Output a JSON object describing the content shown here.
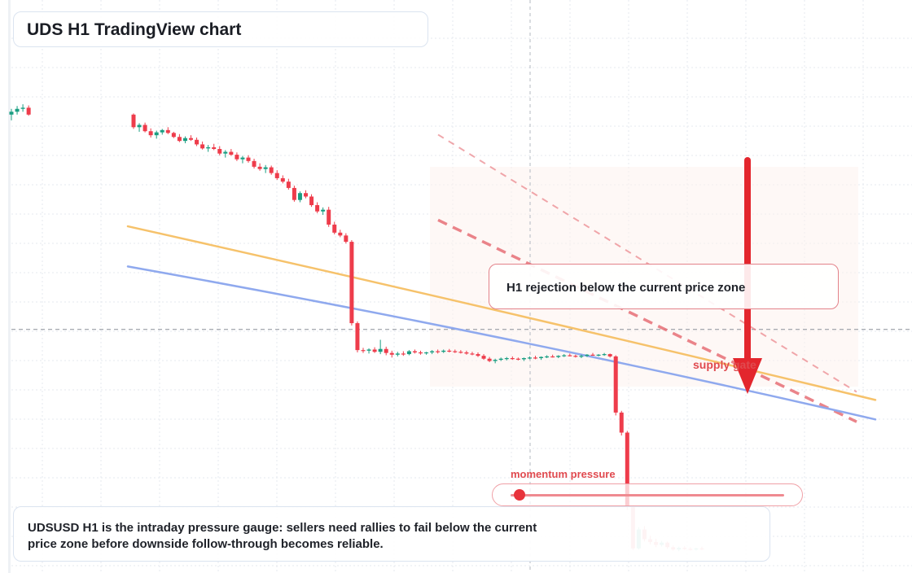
{
  "header": {
    "title": "UDS H1 TradingView chart"
  },
  "annotations": {
    "rejection": "H1 rejection below the current price zone",
    "supply": "supply gate",
    "momentum_label": "momentum pressure",
    "note": "UDSUSD H1 is the intraday pressure gauge: sellers need rallies to fail below the current price zone before downside follow-through becomes reliable."
  },
  "gauge": {
    "level": 0.02
  },
  "colors": {
    "bull": "#1a9e82",
    "bear": "#ee3c4b",
    "ma_fast": "#f6c26b",
    "ma_slow": "#8fa9ee",
    "arrow": "#e3262d",
    "dashed": "#e76f76"
  },
  "chart_data": {
    "type": "candlestick",
    "timeframe": "H1",
    "symbol": "UDSUSD",
    "grid": true,
    "candles": [
      [
        100,
        101,
        99,
        100.5
      ],
      [
        100.5,
        101.5,
        100,
        101
      ],
      [
        101,
        101.8,
        100.5,
        101.2
      ],
      [
        101.2,
        101.6,
        99.8,
        100
      ],
      [
        100,
        100.2,
        97.5,
        97.8
      ],
      [
        97.8,
        98.5,
        97,
        98.2
      ],
      [
        98.2,
        98.6,
        96.9,
        97.1
      ],
      [
        97.1,
        97.6,
        96,
        96.4
      ],
      [
        96.4,
        97.2,
        95.8,
        96.9
      ],
      [
        96.9,
        97.5,
        96.5,
        97.3
      ],
      [
        97.3,
        97.8,
        96.6,
        96.8
      ],
      [
        96.8,
        97,
        95.9,
        96.1
      ],
      [
        96.1,
        96.6,
        95.2,
        95.4
      ],
      [
        95.4,
        96.2,
        95,
        95.9
      ],
      [
        95.9,
        96.4,
        95.4,
        95.6
      ],
      [
        95.6,
        96,
        94.5,
        94.8
      ],
      [
        94.8,
        95.3,
        93.9,
        94.1
      ],
      [
        94.1,
        94.7,
        93.5,
        94.3
      ],
      [
        94.3,
        94.9,
        93.8,
        94
      ],
      [
        94,
        94.5,
        92.9,
        93.2
      ],
      [
        93.2,
        93.8,
        92.5,
        93.5
      ],
      [
        93.5,
        94,
        92.8,
        93
      ],
      [
        93,
        93.4,
        91.9,
        92.2
      ],
      [
        92.2,
        92.8,
        91.5,
        92.5
      ],
      [
        92.5,
        92.9,
        91.6,
        91.9
      ],
      [
        91.9,
        92.3,
        90.6,
        90.9
      ],
      [
        90.9,
        91.5,
        90.2,
        90.5
      ],
      [
        90.5,
        91.2,
        89.8,
        90.8
      ],
      [
        90.8,
        91.1,
        89.5,
        89.8
      ],
      [
        89.8,
        90.3,
        88.6,
        88.9
      ],
      [
        88.9,
        89.4,
        88,
        88.3
      ],
      [
        88.3,
        88.8,
        86.9,
        87.2
      ],
      [
        87.2,
        87.6,
        84.8,
        85.1
      ],
      [
        85.1,
        86.6,
        84.7,
        86.3
      ],
      [
        86.3,
        86.8,
        85.4,
        85.7
      ],
      [
        85.7,
        86.1,
        83.9,
        84.2
      ],
      [
        84.2,
        84.7,
        82.8,
        83.1
      ],
      [
        83.1,
        83.8,
        82.5,
        83.4
      ],
      [
        83.4,
        83.9,
        80.4,
        80.8
      ],
      [
        80.8,
        81.3,
        79.1,
        79.4
      ],
      [
        79.4,
        79.9,
        78.6,
        78.9
      ],
      [
        78.9,
        79.3,
        77.5,
        77.8
      ],
      [
        77.8,
        78.1,
        63.2,
        63.6
      ],
      [
        63.6,
        63.9,
        58.5,
        58.9
      ],
      [
        58.9,
        59.3,
        58.4,
        58.8
      ],
      [
        58.8,
        59.2,
        58.3,
        59
      ],
      [
        59,
        59.4,
        58.4,
        58.6
      ],
      [
        58.6,
        60.7,
        58.2,
        59.1
      ],
      [
        59.1,
        59.5,
        58,
        58.4
      ],
      [
        58.4,
        58.8,
        57.6,
        58.1
      ],
      [
        58.1,
        58.6,
        57.8,
        58.3
      ],
      [
        58.3,
        58.7,
        57.9,
        58.2
      ],
      [
        58.2,
        58.9,
        58,
        58.7
      ],
      [
        58.7,
        59,
        58.3,
        58.5
      ],
      [
        58.5,
        58.8,
        58.1,
        58.4
      ],
      [
        58.4,
        58.6,
        58.1,
        58.5
      ],
      [
        58.5,
        58.9,
        58.2,
        58.7
      ],
      [
        58.7,
        59,
        58.3,
        58.6
      ],
      [
        58.6,
        59,
        58.4,
        58.8
      ],
      [
        58.8,
        59.1,
        58.5,
        58.7
      ],
      [
        58.7,
        59,
        58.4,
        58.6
      ],
      [
        58.6,
        58.9,
        58.3,
        58.5
      ],
      [
        58.5,
        58.8,
        58.1,
        58.3
      ],
      [
        58.3,
        58.6,
        58,
        58.2
      ],
      [
        58.2,
        58.5,
        57.7,
        57.9
      ],
      [
        57.9,
        58.2,
        57.2,
        57.4
      ],
      [
        57.4,
        57.7,
        56.8,
        57
      ],
      [
        57,
        57.4,
        56.6,
        57.2
      ],
      [
        57.2,
        57.6,
        57,
        57.4
      ],
      [
        57.4,
        57.7,
        57.1,
        57.5
      ],
      [
        57.5,
        57.8,
        57.2,
        57.4
      ],
      [
        57.4,
        57.6,
        57.1,
        57.3
      ],
      [
        57.3,
        57.6,
        57,
        57.5
      ],
      [
        57.5,
        57.8,
        57.3,
        57.6
      ],
      [
        57.6,
        57.9,
        57.3,
        57.5
      ],
      [
        57.5,
        57.8,
        57.2,
        57.7
      ],
      [
        57.7,
        58,
        57.5,
        57.8
      ],
      [
        57.8,
        58.1,
        57.6,
        57.7
      ],
      [
        57.7,
        58,
        57.5,
        57.9
      ],
      [
        57.9,
        58.2,
        57.7,
        58
      ],
      [
        58,
        58.3,
        57.8,
        57.9
      ],
      [
        57.9,
        58.1,
        57.6,
        57.8
      ],
      [
        57.8,
        58.1,
        57.5,
        57.9
      ],
      [
        57.9,
        58.2,
        57.7,
        58.1
      ],
      [
        58.1,
        58.4,
        57.9,
        58
      ],
      [
        58,
        58.2,
        57.8,
        58.1
      ],
      [
        58.1,
        58.4,
        57.9,
        58.2
      ],
      [
        58.2,
        58.3,
        57.6,
        57.8
      ],
      [
        57.8,
        58,
        47.5,
        48
      ],
      [
        48,
        48.3,
        44,
        44.5
      ],
      [
        44.5,
        44.8,
        31,
        31.5
      ],
      [
        31.5,
        31.8,
        24,
        24.3
      ],
      [
        24.3,
        28,
        24.1,
        27.6
      ],
      [
        27.6,
        28.2,
        25.5,
        25.9
      ],
      [
        25.9,
        26.5,
        25,
        25.4
      ],
      [
        25.4,
        26,
        24.5,
        24.9
      ],
      [
        24.9,
        25.6,
        24.6,
        25.3
      ],
      [
        25.3,
        25.5,
        24.2,
        24.5
      ],
      [
        24.5,
        24.8,
        23.9,
        24.1
      ],
      [
        24.1,
        24.6,
        23.8,
        24.4
      ],
      [
        24.4,
        24.7,
        24,
        24.2
      ],
      [
        24.2,
        24.5,
        23.9,
        24.1
      ],
      [
        24.1,
        24.4,
        23.9,
        24.3
      ],
      [
        24.3,
        24.6,
        24,
        24.2
      ]
    ],
    "moving_averages": [
      {
        "color": "#f6c26b",
        "start": 80.5,
        "end": 50.2
      },
      {
        "color": "#8fa9ee",
        "start": 73.5,
        "end": 46.8
      }
    ],
    "current_price": 62.5,
    "trend_guides": [
      {
        "style": "dashed",
        "start": 96.5,
        "end": 51.6
      },
      {
        "style": "dashed-thick",
        "start": 81.6,
        "end": 46.4
      }
    ],
    "ylim": [
      20,
      120
    ]
  }
}
